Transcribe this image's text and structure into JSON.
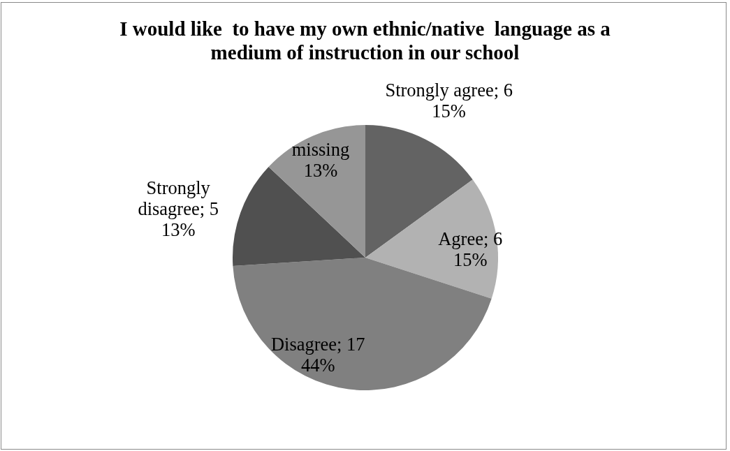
{
  "chart_data": {
    "type": "pie",
    "title": "I would like  to have my own ethnic/native  language as a medium of instruction in our school",
    "categories": [
      null,
      null,
      null,
      null,
      null
    ],
    "values": [
      15,
      15,
      44,
      13,
      13
    ],
    "colors": [
      "#636363",
      "#b2b2b2",
      "#808080",
      "#505050",
      "#969696"
    ],
    "value_labels": [
      "Strongly agree; 6\n15%",
      "Agree; 6\n15%",
      "Disagree; 17\n44%",
      "Strongly disagree; 5\n13%",
      "missing\n13%"
    ]
  }
}
